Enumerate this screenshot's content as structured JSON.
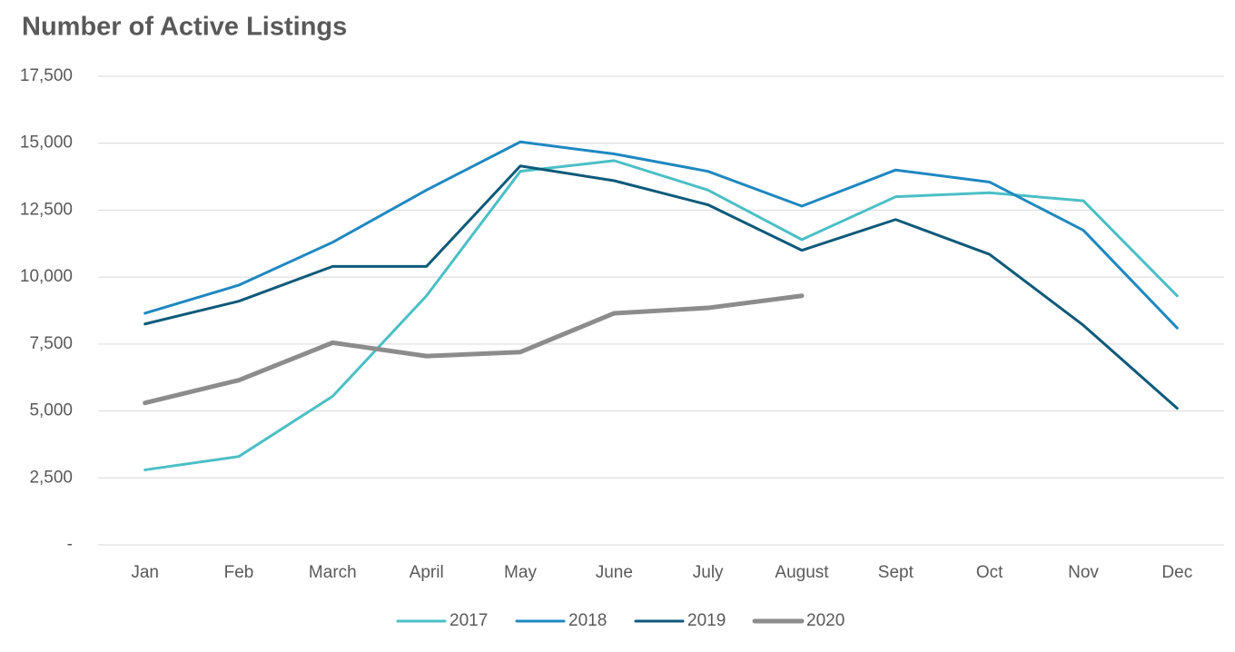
{
  "chart_data": {
    "type": "line",
    "title": "Number of Active Listings",
    "categories": [
      "Jan",
      "Feb",
      "March",
      "April",
      "May",
      "June",
      "July",
      "August",
      "Sept",
      "Oct",
      "Nov",
      "Dec"
    ],
    "series": [
      {
        "name": "2017",
        "color": "#4bbfc5",
        "values": [
          2800,
          3300,
          5550,
          9300,
          13950,
          14350,
          13250,
          11400,
          13000,
          13150,
          12850,
          9300
        ]
      },
      {
        "name": "2018",
        "color": "#1f88c0",
        "values": [
          8650,
          9700,
          11300,
          13250,
          15050,
          14600,
          13950,
          12650,
          14000,
          13550,
          11750,
          8100
        ]
      },
      {
        "name": "2019",
        "color": "#0e5a7a",
        "values": [
          8250,
          9100,
          10400,
          10400,
          14150,
          13600,
          12700,
          11000,
          12150,
          10850,
          8200,
          5100
        ]
      },
      {
        "name": "2020",
        "color": "#8c8c8c",
        "values": [
          5300,
          6150,
          7550,
          7050,
          7200,
          8650,
          8850,
          9300,
          null,
          null,
          null,
          null
        ]
      }
    ],
    "ylim": [
      0,
      17500
    ],
    "yticks": [
      {
        "value": 0,
        "label": "-"
      },
      {
        "value": 2500,
        "label": "2,500"
      },
      {
        "value": 5000,
        "label": "5,000"
      },
      {
        "value": 7500,
        "label": "7,500"
      },
      {
        "value": 10000,
        "label": "10,000"
      },
      {
        "value": 12500,
        "label": "12,500"
      },
      {
        "value": 15000,
        "label": "15,000"
      },
      {
        "value": 17500,
        "label": "17,500"
      }
    ],
    "grid": true,
    "legend": "bottom"
  }
}
